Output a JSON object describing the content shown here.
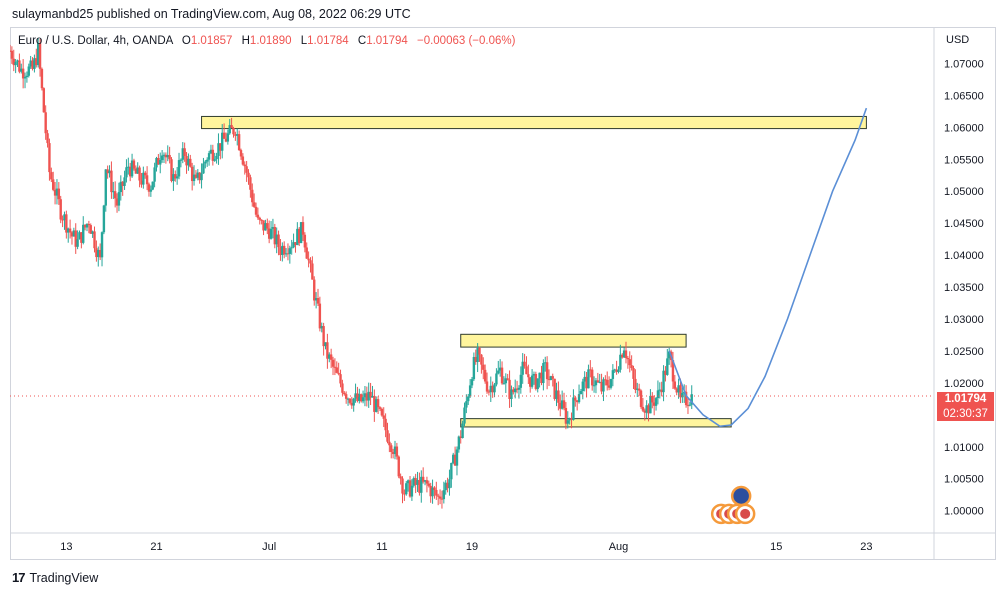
{
  "publisher_line": "sulaymanbd25 published on TradingView.com, Aug 08, 2022 06:29 UTC",
  "legend": {
    "symbol": "Euro / U.S. Dollar, 4h, OANDA",
    "open_label": "O",
    "open": "1.01857",
    "high_label": "H",
    "high": "1.01890",
    "low_label": "L",
    "low": "1.01784",
    "close_label": "C",
    "close": "1.01794",
    "change": "−0.00063 (−0.06%)"
  },
  "last_price": {
    "value": "1.01794",
    "countdown": "02:30:37"
  },
  "brand": {
    "name": "TradingView",
    "logo_text": "17"
  },
  "colors": {
    "up": "#26a69a",
    "down": "#ef5350",
    "zone_fill": "#fff59d",
    "zone_border": "#2e3b2e",
    "projection": "#5b8fd6"
  },
  "chart_data": {
    "type": "candlestick",
    "currency_label": "USD",
    "y_ticks": [
      "1.07000",
      "1.06500",
      "1.06000",
      "1.05500",
      "1.05000",
      "1.04500",
      "1.04000",
      "1.03500",
      "1.03000",
      "1.02500",
      "1.02000",
      "1.01500",
      "1.01000",
      "1.00500",
      "1.00000"
    ],
    "ylim": [
      0.9965,
      1.0757
    ],
    "x_ticks": [
      {
        "label": "13",
        "date": "2022-06-13"
      },
      {
        "label": "21",
        "date": "2022-06-21"
      },
      {
        "label": "Jul",
        "date": "2022-07-01"
      },
      {
        "label": "11",
        "date": "2022-07-11"
      },
      {
        "label": "19",
        "date": "2022-07-19"
      },
      {
        "label": "Aug",
        "date": "2022-08-01"
      },
      {
        "label": "15",
        "date": "2022-08-15"
      },
      {
        "label": "23",
        "date": "2022-08-23"
      }
    ],
    "xlim": [
      "2022-06-08",
      "2022-08-29"
    ],
    "price_path": [
      [
        "2022-06-08T00:00",
        1.072
      ],
      [
        "2022-06-09T00:00",
        1.069
      ],
      [
        "2022-06-10T00:00",
        1.069
      ],
      [
        "2022-06-10T12:00",
        1.072
      ],
      [
        "2022-06-11T12:00",
        1.053
      ],
      [
        "2022-06-12T12:00",
        1.047
      ],
      [
        "2022-06-13T12:00",
        1.043
      ],
      [
        "2022-06-14T00:00",
        1.042
      ],
      [
        "2022-06-15T00:00",
        1.0455
      ],
      [
        "2022-06-16T00:00",
        1.039
      ],
      [
        "2022-06-16T12:00",
        1.054
      ],
      [
        "2022-06-17T12:00",
        1.048
      ],
      [
        "2022-06-18T12:00",
        1.054
      ],
      [
        "2022-06-19T12:00",
        1.052
      ],
      [
        "2022-06-20T12:00",
        1.051
      ],
      [
        "2022-06-21T12:00",
        1.057
      ],
      [
        "2022-06-22T12:00",
        1.052
      ],
      [
        "2022-06-23T12:00",
        1.056
      ],
      [
        "2022-06-24T12:00",
        1.051
      ],
      [
        "2022-06-25T12:00",
        1.0555
      ],
      [
        "2022-06-26T12:00",
        1.057
      ],
      [
        "2022-06-27T12:00",
        1.059
      ],
      [
        "2022-06-28T00:00",
        1.06
      ],
      [
        "2022-06-29T00:00",
        1.053
      ],
      [
        "2022-06-30T00:00",
        1.045
      ],
      [
        "2022-07-01T00:00",
        1.044
      ],
      [
        "2022-07-02T00:00",
        1.041
      ],
      [
        "2022-07-03T00:00",
        1.042
      ],
      [
        "2022-07-04T00:00",
        1.044
      ],
      [
        "2022-07-05T00:00",
        1.034
      ],
      [
        "2022-07-06T00:00",
        1.025
      ],
      [
        "2022-07-07T00:00",
        1.021
      ],
      [
        "2022-07-08T00:00",
        1.018
      ],
      [
        "2022-07-09T00:00",
        1.017
      ],
      [
        "2022-07-10T00:00",
        1.018
      ],
      [
        "2022-07-11T00:00",
        1.014
      ],
      [
        "2022-07-12T00:00",
        1.01
      ],
      [
        "2022-07-13T00:00",
        1.003
      ],
      [
        "2022-07-14T00:00",
        1.004
      ],
      [
        "2022-07-15T00:00",
        1.004
      ],
      [
        "2022-07-16T00:00",
        1.002
      ],
      [
        "2022-07-17T00:00",
        1.005
      ],
      [
        "2022-07-18T00:00",
        1.012
      ],
      [
        "2022-07-19T00:00",
        1.022
      ],
      [
        "2022-07-19T12:00",
        1.024
      ],
      [
        "2022-07-20T12:00",
        1.019
      ],
      [
        "2022-07-21T12:00",
        1.022
      ],
      [
        "2022-07-22T12:00",
        1.018
      ],
      [
        "2022-07-23T12:00",
        1.022
      ],
      [
        "2022-07-24T12:00",
        1.02
      ],
      [
        "2022-07-25T12:00",
        1.022
      ],
      [
        "2022-07-26T12:00",
        1.018
      ],
      [
        "2022-07-27T12:00",
        1.014
      ],
      [
        "2022-07-28T12:00",
        1.019
      ],
      [
        "2022-07-29T12:00",
        1.021
      ],
      [
        "2022-07-30T12:00",
        1.019
      ],
      [
        "2022-07-31T12:00",
        1.021
      ],
      [
        "2022-08-01T12:00",
        1.026
      ],
      [
        "2022-08-02T12:00",
        1.019
      ],
      [
        "2022-08-03T12:00",
        1.016
      ],
      [
        "2022-08-04T12:00",
        1.018
      ],
      [
        "2022-08-05T12:00",
        1.024
      ],
      [
        "2022-08-06T12:00",
        1.017
      ],
      [
        "2022-08-07T12:00",
        1.0179
      ]
    ],
    "zones": [
      {
        "name": "resistance-zone-top",
        "x0": "2022-06-25",
        "x1": "2022-08-23",
        "y0": 1.0598,
        "y1": 1.0617
      },
      {
        "name": "range-top",
        "x0": "2022-07-18",
        "x1": "2022-08-07",
        "y0": 1.0256,
        "y1": 1.0276
      },
      {
        "name": "range-bottom",
        "x0": "2022-07-18",
        "x1": "2022-08-11",
        "y0": 1.0131,
        "y1": 1.0144
      }
    ],
    "projection": [
      [
        "2022-08-05T12:00",
        1.025
      ],
      [
        "2022-08-07T00:00",
        1.018
      ],
      [
        "2022-08-08T12:00",
        1.015
      ],
      [
        "2022-08-10T00:00",
        1.0132
      ],
      [
        "2022-08-11T00:00",
        1.0134
      ],
      [
        "2022-08-12T12:00",
        1.016
      ],
      [
        "2022-08-14T00:00",
        1.021
      ],
      [
        "2022-08-16T00:00",
        1.03
      ],
      [
        "2022-08-18T00:00",
        1.04
      ],
      [
        "2022-08-20T00:00",
        1.05
      ],
      [
        "2022-08-22T00:00",
        1.058
      ],
      [
        "2022-08-23T00:00",
        1.063
      ]
    ],
    "last_price": 1.01794,
    "event_icons": 5
  }
}
